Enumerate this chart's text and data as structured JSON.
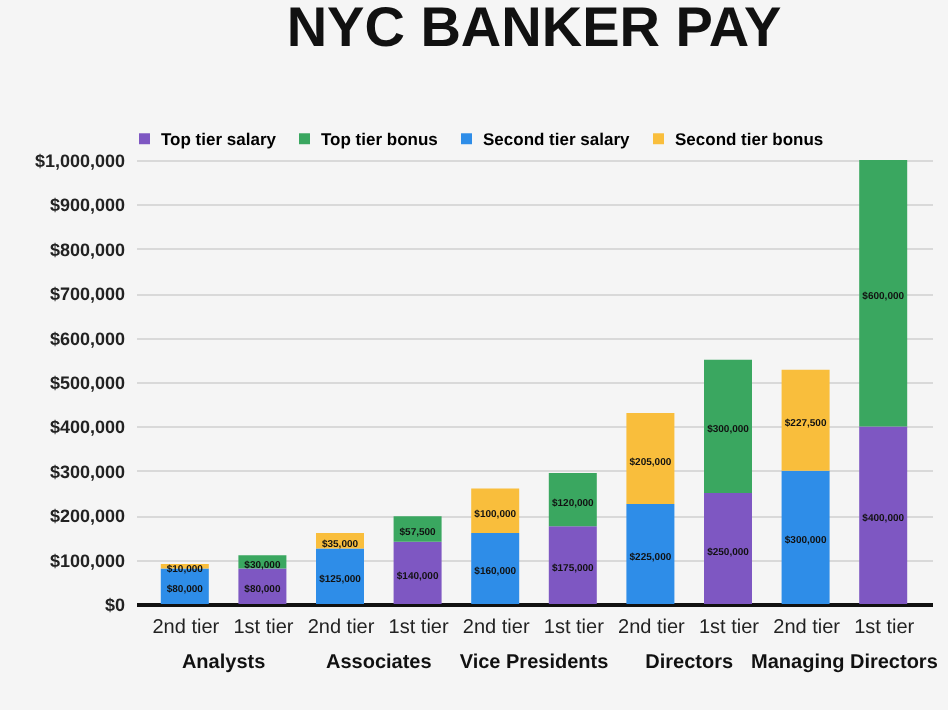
{
  "chart_data": {
    "type": "bar",
    "title": "NYC BANKER PAY",
    "categories": [
      "2nd tier",
      "1st tier",
      "2nd tier",
      "1st tier",
      "2nd tier",
      "1st tier",
      "2nd tier",
      "1st tier",
      "2nd tier",
      "1st tier"
    ],
    "annotations": [
      "Analysts",
      "Associates",
      "Vice Presidents",
      "Directors",
      "Managing Directors"
    ],
    "stacked": true,
    "series": [
      {
        "name": "Top tier salary",
        "color": "#7e57c2",
        "values": [
          null,
          80000,
          null,
          140000,
          null,
          175000,
          null,
          250000,
          null,
          400000
        ],
        "value_labels": [
          null,
          "$80,000",
          null,
          "$140,000",
          null,
          "$175,000",
          null,
          "$250,000",
          null,
          "$400,000"
        ]
      },
      {
        "name": "Top tier bonus",
        "color": "#3aa760",
        "values": [
          null,
          30000,
          null,
          57500,
          null,
          120000,
          null,
          300000,
          null,
          600000
        ],
        "value_labels": [
          null,
          "$30,000",
          null,
          "$57,500",
          null,
          "$120,000",
          null,
          "$300,000",
          null,
          "$600,000"
        ]
      },
      {
        "name": "Second tier salary",
        "color": "#2e8de8",
        "values": [
          80000,
          null,
          125000,
          null,
          160000,
          null,
          225000,
          null,
          300000,
          null
        ],
        "value_labels": [
          "$80,000",
          null,
          "$125,000",
          null,
          "$160,000",
          null,
          "$225,000",
          null,
          "$300,000",
          null
        ]
      },
      {
        "name": "Second tier bonus",
        "color": "#f9be3c",
        "values": [
          10000,
          null,
          35000,
          null,
          100000,
          null,
          205000,
          null,
          227500,
          null
        ],
        "value_labels": [
          "$10,000",
          null,
          "$35,000",
          null,
          "$100,000",
          null,
          "$205,000",
          null,
          "$227,500",
          null
        ]
      }
    ],
    "ylim": [
      0,
      1000000
    ],
    "yticks": [
      {
        "value": 0,
        "label": "$0"
      },
      {
        "value": 100000,
        "label": "$100,000"
      },
      {
        "value": 200000,
        "label": "$200,000"
      },
      {
        "value": 300000,
        "label": "$300,000"
      },
      {
        "value": 400000,
        "label": "$400,000"
      },
      {
        "value": 500000,
        "label": "$500,000"
      },
      {
        "value": 600000,
        "label": "$600,000"
      },
      {
        "value": 700000,
        "label": "$700,000"
      },
      {
        "value": 800000,
        "label": "$800,000"
      },
      {
        "value": 900000,
        "label": "$900,000"
      },
      {
        "value": 1000000,
        "label": "$1,000,000"
      }
    ],
    "grid": true,
    "legend": "top"
  }
}
